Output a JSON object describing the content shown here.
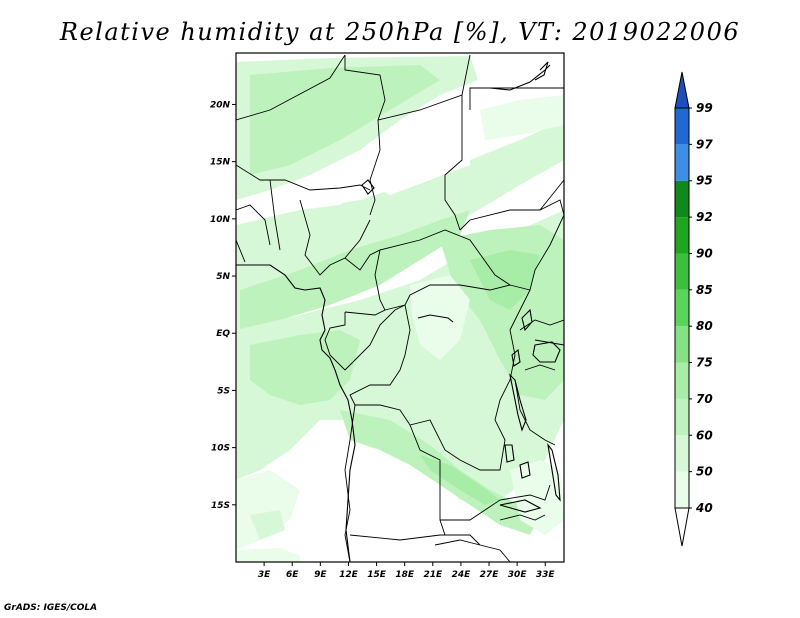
{
  "title": "Relative humidity at 250hPa [%], VT: 2019022006",
  "footer": "GrADS: IGES/COLA",
  "colors": {
    "c40": "#eafcea",
    "c50": "#d6f8d6",
    "c60": "#bdf2bd",
    "c70": "#a7eca7",
    "c75": "#86e086",
    "c80": "#5ad45a",
    "c85": "#3cbf3c",
    "c90": "#1fa51f",
    "c92": "#10891a",
    "c95": "#3e8ee4",
    "c97": "#2268d2",
    "c99": "#1d4fbc"
  },
  "chart_data": {
    "type": "heatmap",
    "title": "Relative humidity at 250hPa [%], VT: 2019022006",
    "x_ticks": [
      "3E",
      "6E",
      "9E",
      "12E",
      "15E",
      "18E",
      "21E",
      "24E",
      "27E",
      "30E",
      "33E"
    ],
    "y_ticks": [
      "20N",
      "15N",
      "10N",
      "5N",
      "EQ",
      "5S",
      "10S",
      "15S"
    ],
    "lon_range": [
      0,
      35
    ],
    "lat_range": [
      -20,
      24.5
    ],
    "colorbar": {
      "levels": [
        "40",
        "50",
        "60",
        "70",
        "75",
        "80",
        "85",
        "90",
        "92",
        "95",
        "97",
        "99"
      ],
      "colors": [
        "#eafcea",
        "#d6f8d6",
        "#bdf2bd",
        "#a7eca7",
        "#86e086",
        "#5ad45a",
        "#3cbf3c",
        "#1fa51f",
        "#10891a",
        "#3e8ee4",
        "#2268d2",
        "#1d4fbc"
      ]
    }
  }
}
